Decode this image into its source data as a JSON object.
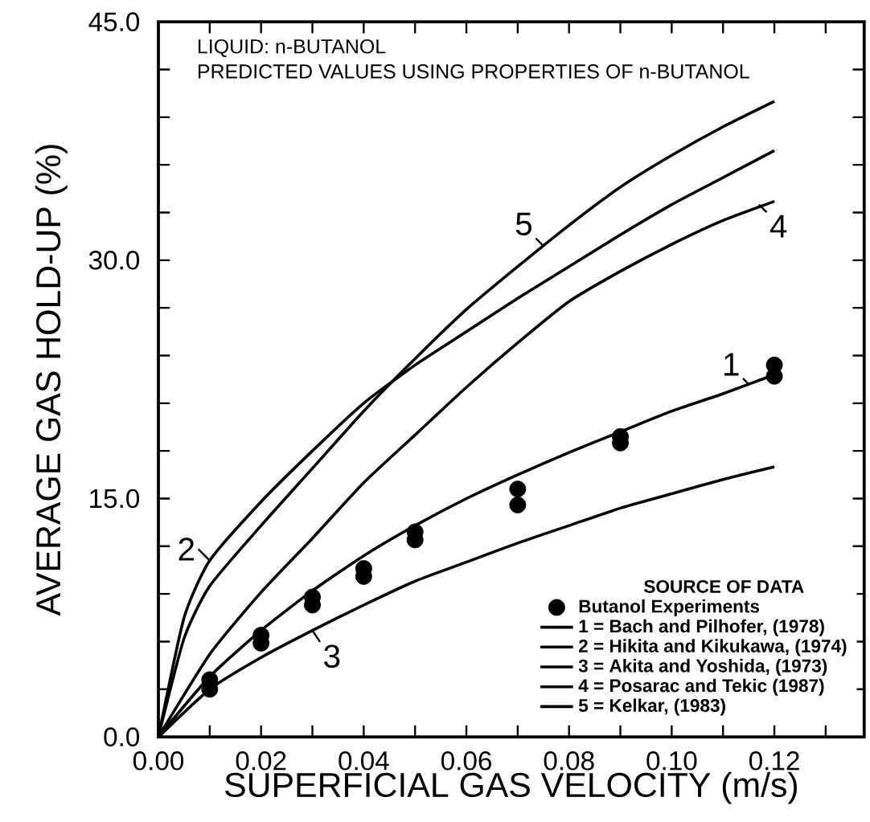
{
  "chart_data": {
    "type": "line",
    "xlabel": "SUPERFICIAL GAS VELOCITY (m/s)",
    "ylabel": "AVERAGE GAS HOLD-UP (%)",
    "legend_title": "SOURCE OF DATA",
    "legend": "bottom right",
    "xlim": [
      0,
      0.1375
    ],
    "ylim": [
      0,
      45
    ],
    "xticks": [
      {
        "value": 0,
        "label": "0.00"
      },
      {
        "value": 0.01,
        "label": null
      },
      {
        "value": 0.02,
        "label": "0.02"
      },
      {
        "value": 0.03,
        "label": null
      },
      {
        "value": 0.04,
        "label": "0.04"
      },
      {
        "value": 0.05,
        "label": null
      },
      {
        "value": 0.06,
        "label": "0.06"
      },
      {
        "value": 0.07,
        "label": null
      },
      {
        "value": 0.08,
        "label": "0.08"
      },
      {
        "value": 0.09,
        "label": null
      },
      {
        "value": 0.1,
        "label": "0.10"
      },
      {
        "value": 0.11,
        "label": null
      },
      {
        "value": 0.12,
        "label": "0.12"
      },
      {
        "value": 0.13,
        "label": null
      }
    ],
    "yticks": [
      {
        "value": 0,
        "label": "0.0"
      },
      {
        "value": 3,
        "label": null
      },
      {
        "value": 6,
        "label": null
      },
      {
        "value": 9,
        "label": null
      },
      {
        "value": 12,
        "label": null
      },
      {
        "value": 15,
        "label": "15.0"
      },
      {
        "value": 18,
        "label": null
      },
      {
        "value": 21,
        "label": null
      },
      {
        "value": 24,
        "label": null
      },
      {
        "value": 27,
        "label": null
      },
      {
        "value": 30,
        "label": "30.0"
      },
      {
        "value": 33,
        "label": null
      },
      {
        "value": 36,
        "label": null
      },
      {
        "value": 39,
        "label": null
      },
      {
        "value": 42,
        "label": null
      },
      {
        "value": 45,
        "label": "45.0"
      }
    ],
    "series": [
      {
        "name": "Butanol Experiments",
        "type": "scatter",
        "marker": "circle",
        "color": "#000000",
        "x": [
          0.01,
          0.01,
          0.02,
          0.02,
          0.03,
          0.03,
          0.04,
          0.04,
          0.05,
          0.05,
          0.07,
          0.07,
          0.09,
          0.09,
          0.12,
          0.12
        ],
        "values": [
          3.6,
          3.0,
          6.4,
          5.9,
          8.8,
          8.3,
          10.6,
          10.1,
          12.9,
          12.4,
          15.6,
          14.6,
          18.9,
          18.5,
          23.4,
          22.7
        ]
      },
      {
        "name": "1 = Bach and Pilhofer, (1978)",
        "color": "#000000",
        "x": [
          0,
          0.01,
          0.02,
          0.03,
          0.04,
          0.05,
          0.06,
          0.07,
          0.08,
          0.09,
          0.1,
          0.11,
          0.12
        ],
        "values": [
          0,
          3.8,
          6.7,
          9.2,
          11.4,
          13.3,
          15.0,
          16.5,
          17.9,
          19.2,
          20.5,
          21.6,
          22.8
        ]
      },
      {
        "name": "2 = Hikita and Kikukawa, (1974)",
        "color": "#000000",
        "x": [
          0,
          0.005,
          0.01,
          0.02,
          0.03,
          0.04,
          0.05,
          0.06,
          0.07,
          0.08,
          0.09,
          0.1,
          0.11,
          0.12
        ],
        "values": [
          0,
          7.5,
          11.1,
          14.8,
          18.0,
          21.0,
          23.4,
          25.5,
          27.6,
          29.6,
          31.6,
          33.5,
          35.2,
          36.9
        ]
      },
      {
        "name": "3 = Akita and Yoshida, (1973)",
        "color": "#000000",
        "x": [
          0,
          0.01,
          0.02,
          0.03,
          0.04,
          0.05,
          0.06,
          0.07,
          0.08,
          0.09,
          0.1,
          0.11,
          0.12
        ],
        "values": [
          0,
          3.0,
          5.0,
          6.7,
          8.3,
          9.8,
          11.0,
          12.2,
          13.3,
          14.4,
          15.3,
          16.2,
          17.0
        ]
      },
      {
        "name": "4 = Posarac and Tekic (1987)",
        "color": "#000000",
        "x": [
          0,
          0.01,
          0.02,
          0.03,
          0.04,
          0.05,
          0.06,
          0.07,
          0.08,
          0.09,
          0.1,
          0.11,
          0.12
        ],
        "values": [
          0,
          5.2,
          9.1,
          12.5,
          16.0,
          19.0,
          22.0,
          24.8,
          27.4,
          29.3,
          31.0,
          32.5,
          33.7
        ]
      },
      {
        "name": "5 = Kelkar, (1983)",
        "color": "#000000",
        "x": [
          0,
          0.005,
          0.01,
          0.02,
          0.03,
          0.04,
          0.05,
          0.06,
          0.07,
          0.08,
          0.09,
          0.1,
          0.11,
          0.12
        ],
        "values": [
          0,
          6.2,
          9.5,
          13.3,
          16.9,
          20.5,
          23.8,
          26.9,
          29.6,
          32.2,
          34.6,
          36.6,
          38.4,
          40.0
        ]
      }
    ],
    "annotations": [
      "LIQUID: n-BUTANOL",
      "PREDICTED VALUES USING PROPERTIES OF n-BUTANOL",
      {
        "text": "1",
        "x": 0.115,
        "y": 22.2
      },
      {
        "text": "2",
        "x": 0.01,
        "y": 11.1
      },
      {
        "text": "3",
        "x": 0.03,
        "y": 6.7
      },
      {
        "text": "4",
        "x": 0.117,
        "y": 33.5
      },
      {
        "text": "5",
        "x": 0.075,
        "y": 30.9
      }
    ]
  }
}
